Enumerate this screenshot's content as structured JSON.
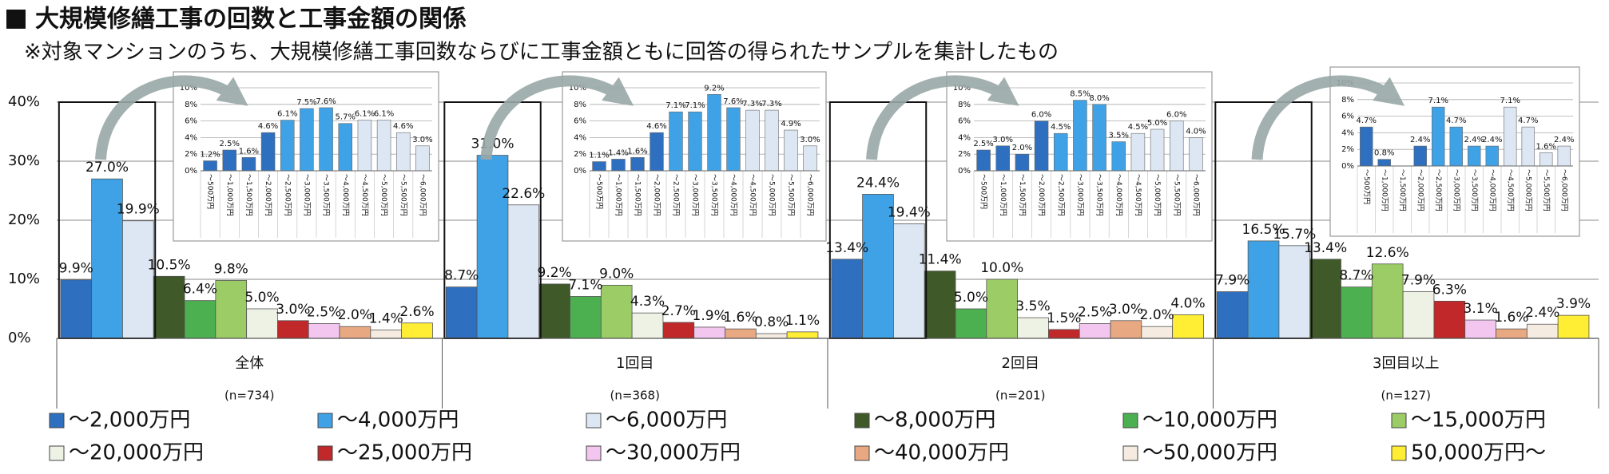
{
  "chart_data": [
    {
      "type": "bar",
      "title": "大規模修繕工事の回数と工事金額の関係",
      "subtitle": "※対象マンションのうち、大規模修繕工事回数ならびに工事金額ともに回答の得られたサンプルを集計したもの",
      "categories": [
        "全体",
        "1回目",
        "2回目",
        "3回目以上"
      ],
      "group_notes": [
        "(n=734)",
        "(n=368)",
        "(n=201)",
        "(n=127)"
      ],
      "ylim": [
        0,
        40
      ],
      "yticks": [
        {
          "value": 0,
          "label": "0%"
        },
        {
          "value": 10,
          "label": "10%"
        },
        {
          "value": 20,
          "label": "20%"
        },
        {
          "value": 30,
          "label": "30%"
        },
        {
          "value": 40,
          "label": "40%"
        }
      ],
      "grid": true,
      "series": [
        {
          "name": "～2,000万円",
          "color": "#2e6fbf",
          "values": [
            9.9,
            8.7,
            13.4,
            7.9
          ],
          "value_labels": [
            "9.9%",
            "8.7%",
            "13.4%",
            "7.9%"
          ]
        },
        {
          "name": "～4,000万円",
          "color": "#3fa2e6",
          "values": [
            27.0,
            31.0,
            24.4,
            16.5
          ],
          "value_labels": [
            "27.0%",
            "31.0%",
            "24.4%",
            "16.5%"
          ]
        },
        {
          "name": "～6,000万円",
          "color": "#dde7f3",
          "values": [
            19.9,
            22.6,
            19.4,
            15.7
          ],
          "value_labels": [
            "19.9%",
            "22.6%",
            "19.4%",
            "15.7%"
          ]
        },
        {
          "name": "～8,000万円",
          "color": "#3f5a28",
          "values": [
            10.5,
            9.2,
            11.4,
            13.4
          ],
          "value_labels": [
            "10.5%",
            "9.2%",
            "11.4%",
            "13.4%"
          ]
        },
        {
          "name": "～10,000万円",
          "color": "#4caf50",
          "values": [
            6.4,
            7.1,
            5.0,
            8.7
          ],
          "value_labels": [
            "6.4%",
            "7.1%",
            "5.0%",
            "8.7%"
          ]
        },
        {
          "name": "～15,000万円",
          "color": "#9ccc65",
          "values": [
            9.8,
            9.0,
            10.0,
            12.6
          ],
          "value_labels": [
            "9.8%",
            "9.0%",
            "10.0%",
            "12.6%"
          ]
        },
        {
          "name": "～20,000万円",
          "color": "#eef2e4",
          "values": [
            5.0,
            4.3,
            3.5,
            7.9
          ],
          "value_labels": [
            "5.0%",
            "4.3%",
            "3.5%",
            "7.9%"
          ]
        },
        {
          "name": "～25,000万円",
          "color": "#c0282a",
          "values": [
            3.0,
            2.7,
            1.5,
            6.3
          ],
          "value_labels": [
            "3.0%",
            "2.7%",
            "1.5%",
            "6.3%"
          ]
        },
        {
          "name": "～30,000万円",
          "color": "#f3c6ef",
          "values": [
            2.5,
            1.9,
            2.5,
            3.1
          ],
          "value_labels": [
            "2.5%",
            "1.9%",
            "2.5%",
            "3.1%"
          ]
        },
        {
          "name": "～40,000万円",
          "color": "#e8a882",
          "values": [
            2.0,
            1.6,
            3.0,
            1.6
          ],
          "value_labels": [
            "2.0%",
            "1.6%",
            "3.0%",
            "1.6%"
          ]
        },
        {
          "name": "～50,000万円",
          "color": "#f5ebe0",
          "values": [
            1.4,
            0.8,
            2.0,
            2.4
          ],
          "value_labels": [
            "1.4%",
            "0.8%",
            "2.0%",
            "2.4%"
          ]
        },
        {
          "name": "50,000万円～",
          "color": "#ffee33",
          "values": [
            2.6,
            1.1,
            4.0,
            3.9
          ],
          "value_labels": [
            "2.6%",
            "1.1%",
            "4.0%",
            "3.9%"
          ]
        }
      ]
    },
    {
      "type": "bar",
      "categories": [
        "～500万円",
        "～1,000万円",
        "～1,500万円",
        "～2,000万円",
        "～2,500万円",
        "～3,000万円",
        "～3,500万円",
        "～4,000万円",
        "～4,500万円",
        "～5,000万円",
        "～5,500万円",
        "～6,000万円"
      ],
      "values": [
        1.2,
        2.5,
        1.6,
        4.6,
        6.1,
        7.5,
        7.6,
        5.7,
        6.1,
        6.1,
        4.6,
        3.0
      ],
      "value_labels": [
        "1.2%",
        "2.5%",
        "1.6%",
        "4.6%",
        "6.1%",
        "7.5%",
        "7.6%",
        "5.7%",
        "6.1%",
        "6.1%",
        "4.6%",
        "3.0%"
      ],
      "colors": [
        "#2e6fbf",
        "#2e6fbf",
        "#2e6fbf",
        "#2e6fbf",
        "#3fa2e6",
        "#3fa2e6",
        "#3fa2e6",
        "#3fa2e6",
        "#dde7f3",
        "#dde7f3",
        "#dde7f3",
        "#dde7f3"
      ],
      "ylim": [
        0,
        10
      ],
      "yticks": [
        {
          "value": 0,
          "label": "0%"
        },
        {
          "value": 2,
          "label": "2%"
        },
        {
          "value": 4,
          "label": "4%"
        },
        {
          "value": 6,
          "label": "6%"
        },
        {
          "value": 8,
          "label": "8%"
        },
        {
          "value": 10,
          "label": "10%"
        }
      ],
      "grid": true
    },
    {
      "type": "bar",
      "categories": [
        "～500万円",
        "～1,000万円",
        "～1,500万円",
        "～2,000万円",
        "～2,500万円",
        "～3,000万円",
        "～3,500万円",
        "～4,000万円",
        "～4,500万円",
        "～5,000万円",
        "～5,500万円",
        "～6,000万円"
      ],
      "values": [
        1.1,
        1.4,
        1.6,
        4.6,
        7.1,
        7.1,
        9.2,
        7.6,
        7.3,
        7.3,
        4.9,
        3.0
      ],
      "value_labels": [
        "1.1%",
        "1.4%",
        "1.6%",
        "4.6%",
        "7.1%",
        "7.1%",
        "9.2%",
        "7.6%",
        "7.3%",
        "7.3%",
        "4.9%",
        "3.0%"
      ],
      "colors": [
        "#2e6fbf",
        "#2e6fbf",
        "#2e6fbf",
        "#2e6fbf",
        "#3fa2e6",
        "#3fa2e6",
        "#3fa2e6",
        "#3fa2e6",
        "#dde7f3",
        "#dde7f3",
        "#dde7f3",
        "#dde7f3"
      ],
      "ylim": [
        0,
        10
      ],
      "yticks": [
        {
          "value": 0,
          "label": "0%"
        },
        {
          "value": 2,
          "label": "2%"
        },
        {
          "value": 4,
          "label": "4%"
        },
        {
          "value": 6,
          "label": "6%"
        },
        {
          "value": 8,
          "label": "8%"
        },
        {
          "value": 10,
          "label": "10%"
        }
      ],
      "grid": true
    },
    {
      "type": "bar",
      "categories": [
        "～500万円",
        "～1,000万円",
        "～1,500万円",
        "～2,000万円",
        "～2,500万円",
        "～3,000万円",
        "～3,500万円",
        "～4,000万円",
        "～4,500万円",
        "～5,000万円",
        "～5,500万円",
        "～6,000万円"
      ],
      "values": [
        2.5,
        3.0,
        2.0,
        6.0,
        4.5,
        8.5,
        8.0,
        3.5,
        4.5,
        5.0,
        6.0,
        4.0
      ],
      "value_labels": [
        "2.5%",
        "3.0%",
        "2.0%",
        "6.0%",
        "4.5%",
        "8.5%",
        "8.0%",
        "3.5%",
        "4.5%",
        "5.0%",
        "6.0%",
        "4.0%"
      ],
      "colors": [
        "#2e6fbf",
        "#2e6fbf",
        "#2e6fbf",
        "#2e6fbf",
        "#3fa2e6",
        "#3fa2e6",
        "#3fa2e6",
        "#3fa2e6",
        "#dde7f3",
        "#dde7f3",
        "#dde7f3",
        "#dde7f3"
      ],
      "ylim": [
        0,
        10
      ],
      "yticks": [
        {
          "value": 0,
          "label": "0%"
        },
        {
          "value": 2,
          "label": "2%"
        },
        {
          "value": 4,
          "label": "4%"
        },
        {
          "value": 6,
          "label": "6%"
        },
        {
          "value": 8,
          "label": "8%"
        },
        {
          "value": 10,
          "label": "10%"
        }
      ],
      "grid": true
    },
    {
      "type": "bar",
      "categories": [
        "～500万円",
        "～1,000万円",
        "～1,500万円",
        "～2,000万円",
        "～2,500万円",
        "～3,000万円",
        "～3,500万円",
        "～4,000万円",
        "～4,500万円",
        "～5,000万円",
        "～5,500万円",
        "～6,000万円"
      ],
      "values": [
        4.7,
        0.8,
        0,
        2.4,
        7.1,
        4.7,
        2.4,
        2.4,
        7.1,
        4.7,
        1.6,
        2.4
      ],
      "value_labels": [
        "4.7%",
        "0.8%",
        null,
        "2.4%",
        "7.1%",
        "4.7%",
        "2.4%",
        "2.4%",
        "7.1%",
        "4.7%",
        "1.6%",
        "2.4%"
      ],
      "colors": [
        "#2e6fbf",
        "#2e6fbf",
        "#2e6fbf",
        "#2e6fbf",
        "#3fa2e6",
        "#3fa2e6",
        "#3fa2e6",
        "#3fa2e6",
        "#dde7f3",
        "#dde7f3",
        "#dde7f3",
        "#dde7f3"
      ],
      "ylim": [
        0,
        10
      ],
      "yticks": [
        {
          "value": 0,
          "label": "0%"
        },
        {
          "value": 2,
          "label": "2%"
        },
        {
          "value": 4,
          "label": "4%"
        },
        {
          "value": 6,
          "label": "6%"
        },
        {
          "value": 8,
          "label": "8%"
        },
        {
          "value": 10,
          "label": "10%"
        }
      ],
      "grid": true
    }
  ]
}
